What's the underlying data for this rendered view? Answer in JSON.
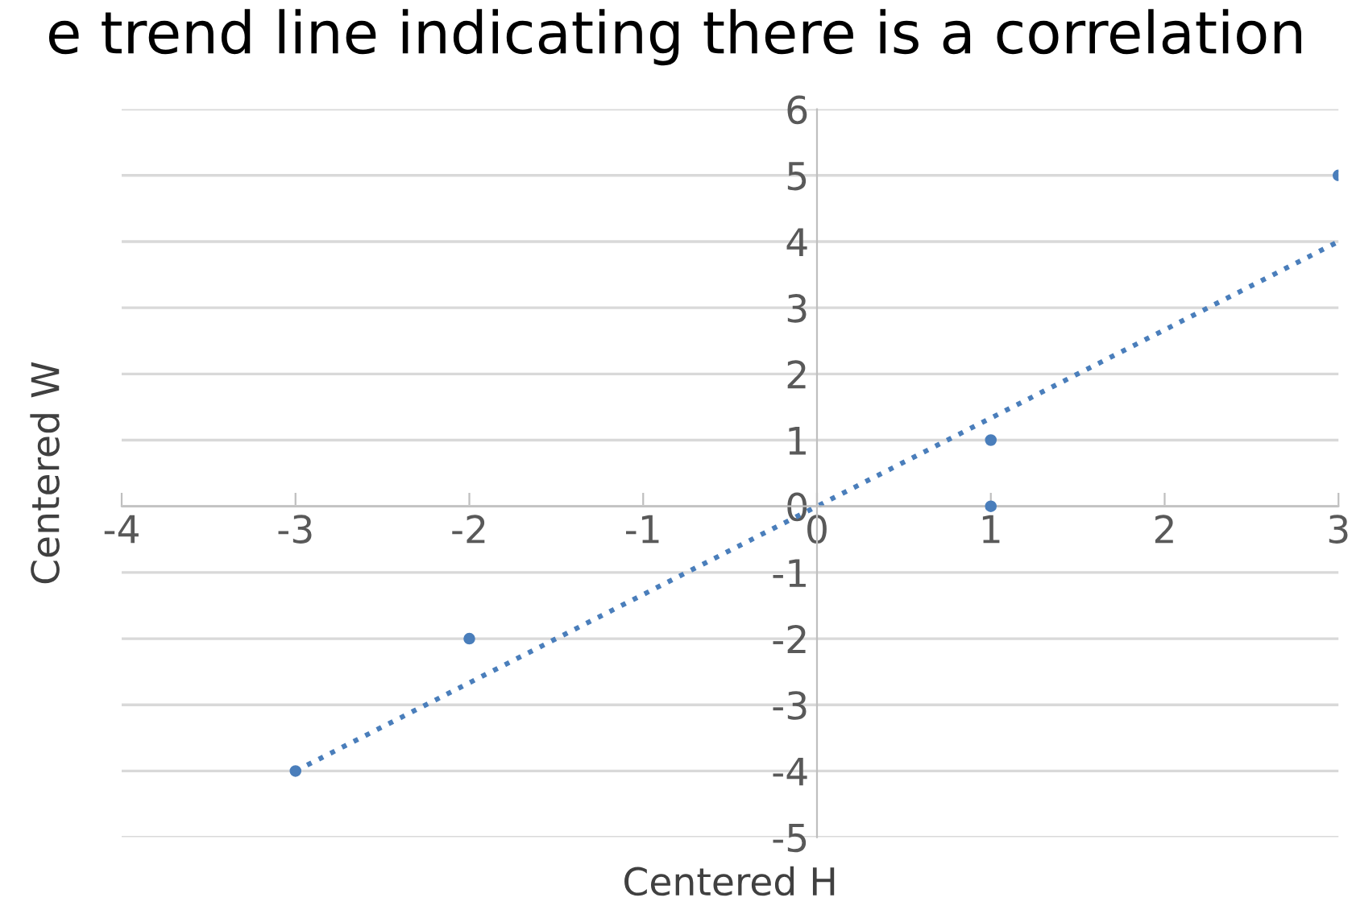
{
  "chart_data": {
    "type": "scatter",
    "title": "e trend line indicating there is a correlation",
    "xlabel": "Centered H",
    "ylabel": "Centered W",
    "xlim": [
      -4,
      3
    ],
    "xticks": [
      -4,
      -3,
      -2,
      -1,
      0,
      1,
      2,
      3
    ],
    "ylim": [
      -5,
      6
    ],
    "yticks": [
      -5,
      -4,
      -3,
      -2,
      -1,
      0,
      1,
      2,
      3,
      4,
      5,
      6
    ],
    "grid": "y",
    "marker": "circle",
    "series": [
      {
        "color": "#4a7ebb",
        "x": [
          -3,
          -2,
          1,
          1,
          3
        ],
        "values": [
          -4,
          -2,
          1,
          0,
          5
        ]
      },
      {
        "type": "line",
        "color": "#4a7ebb",
        "line_style": "dotted",
        "marker": "none",
        "x": [
          -3,
          3
        ],
        "values": [
          -4,
          4
        ]
      }
    ]
  }
}
